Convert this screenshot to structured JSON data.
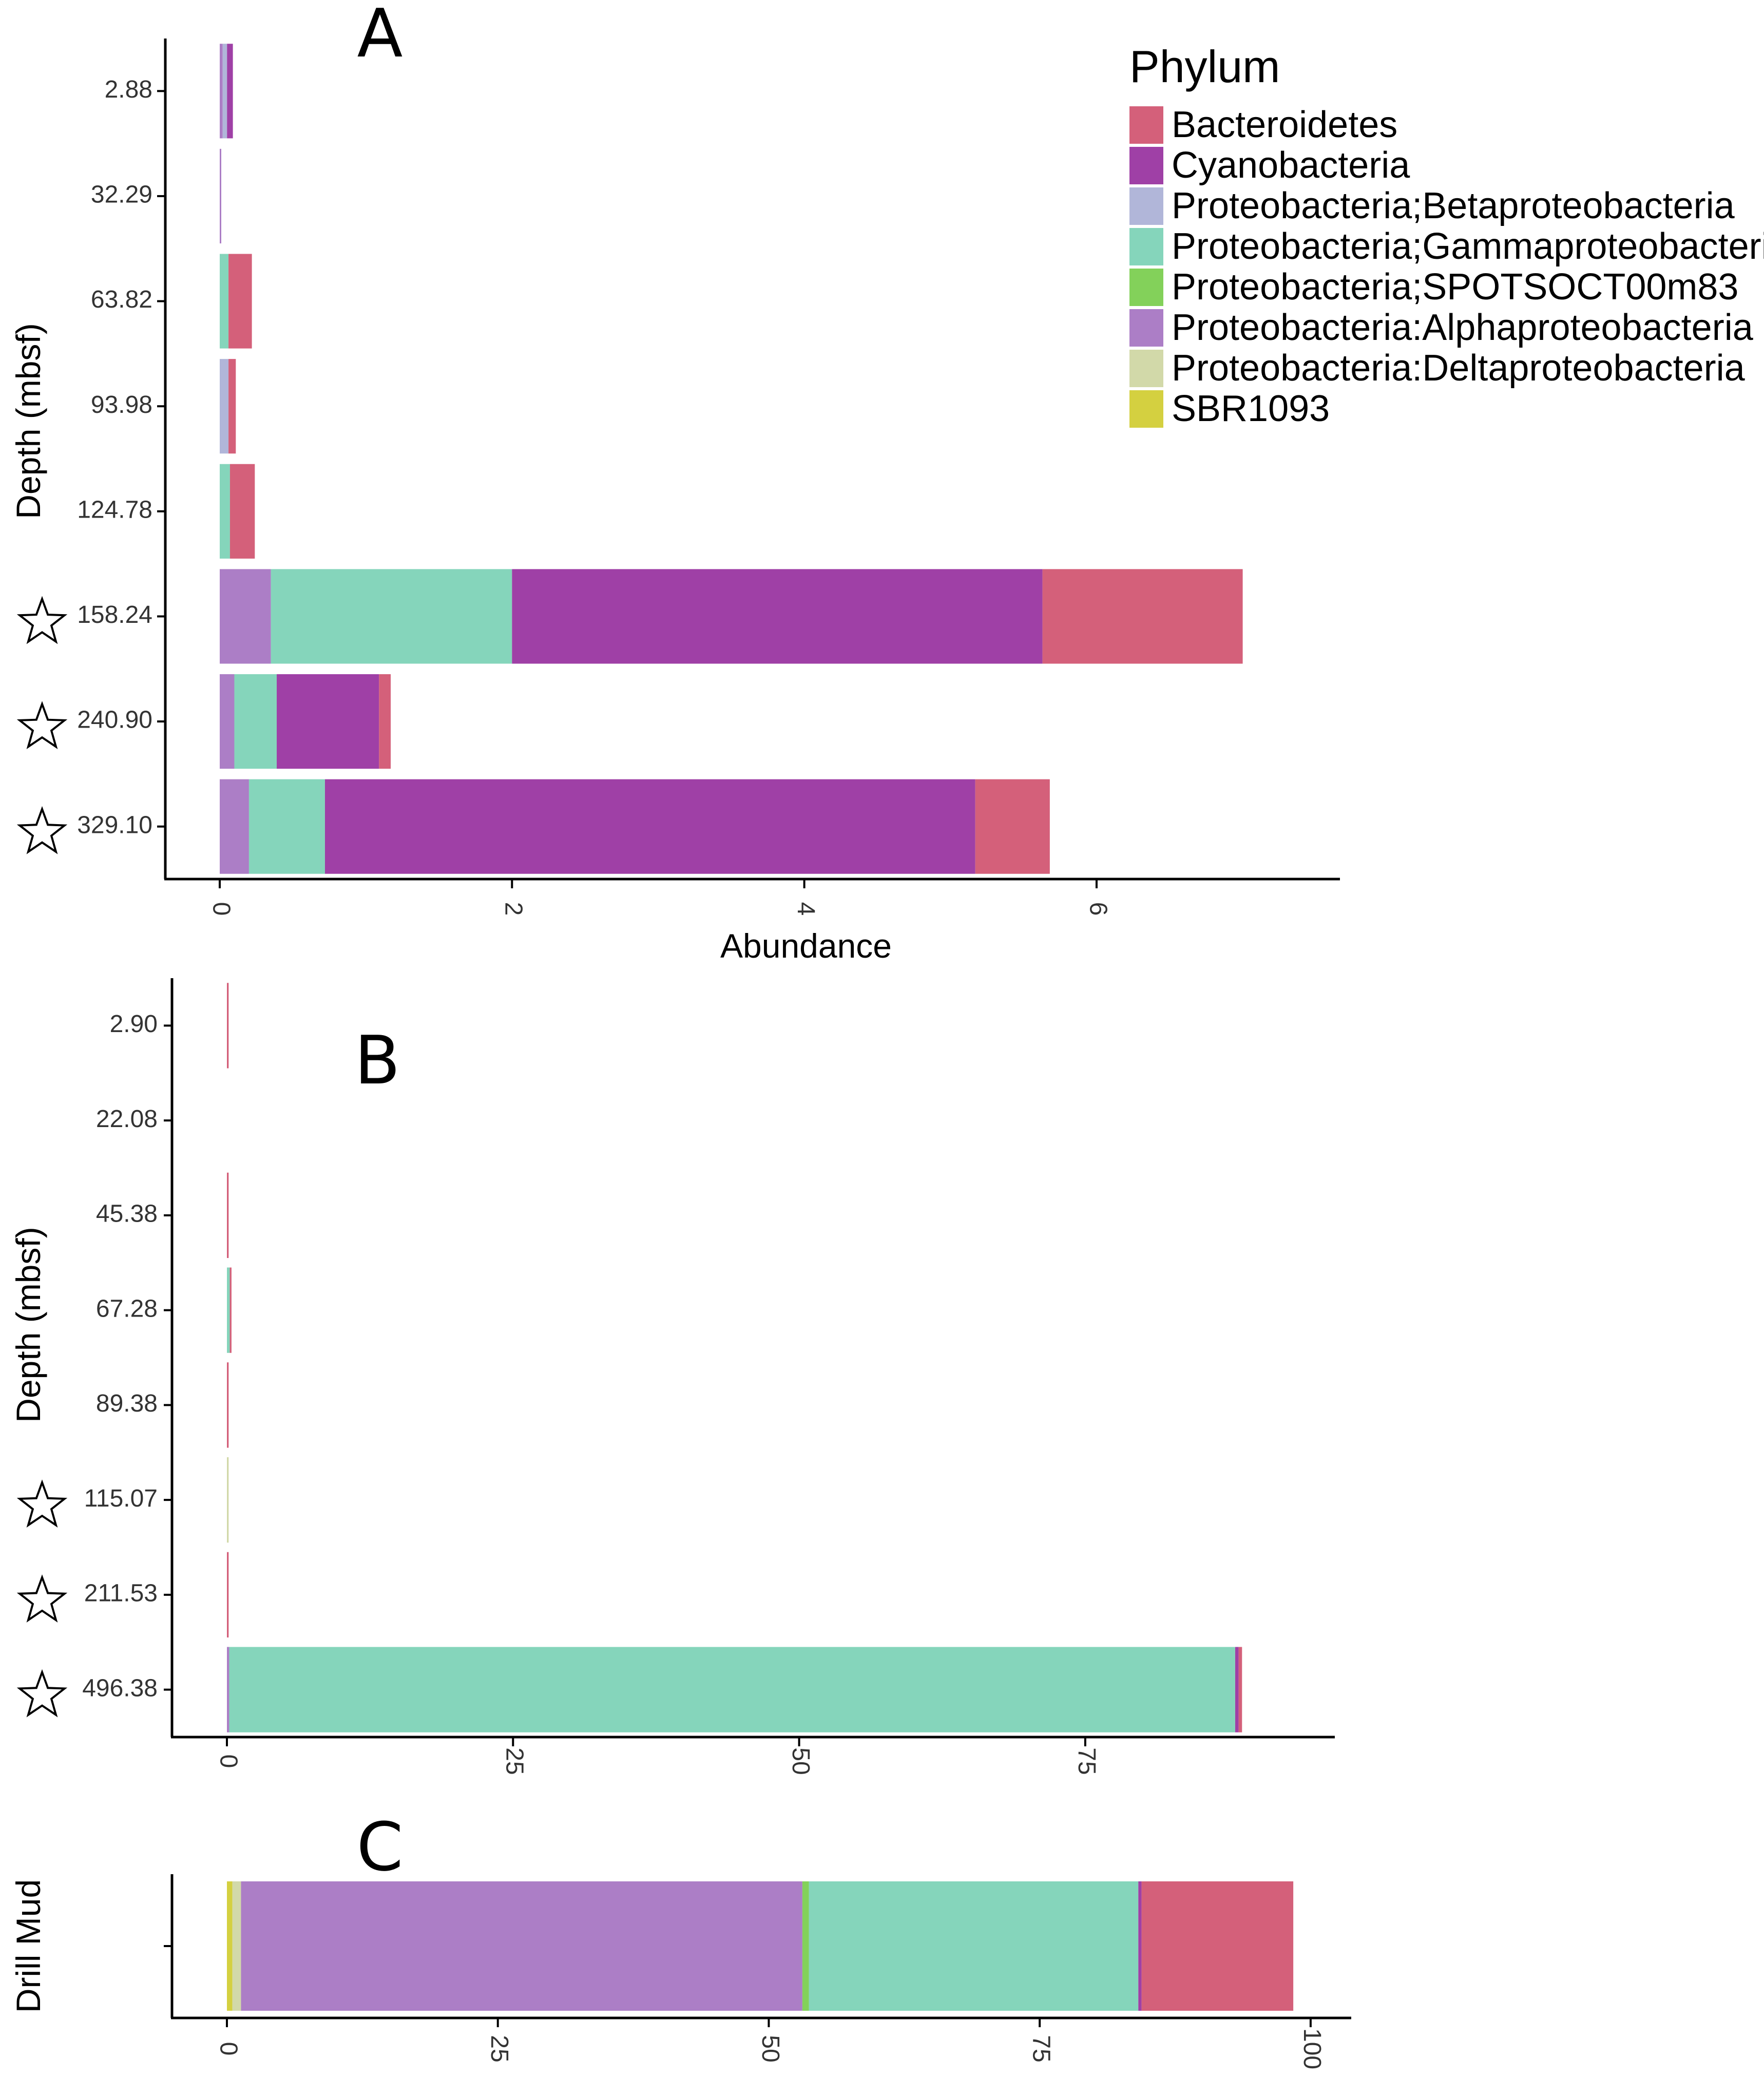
{
  "legend": {
    "title": "Phylum",
    "position": "top-right",
    "items": [
      {
        "label": "Bacteroidetes",
        "color": "#D4607A"
      },
      {
        "label": "Cyanobacteria",
        "color": "#9F40A6"
      },
      {
        "label": "Proteobacteria;Betaproteobacteria",
        "color": "#B1B6D9"
      },
      {
        "label": "Proteobacteria;Gammaproteobacteria",
        "color": "#85D5BB"
      },
      {
        "label": "Proteobacteria;SPOTSOCT00m83",
        "color": "#83D15A"
      },
      {
        "label": "Proteobacteria:Alphaproteobacteria",
        "color": "#AC7EC6"
      },
      {
        "label": "Proteobacteria:Deltaproteobacteria",
        "color": "#D2D9A9"
      },
      {
        "label": "SBR1093",
        "color": "#D4D040"
      }
    ]
  },
  "chart_data": [
    {
      "panel": "A",
      "type": "bar",
      "orientation": "horizontal",
      "stacked": true,
      "ylabel": "Depth (mbsf)",
      "xlabel": "Abundance",
      "xlim": [
        0,
        7.3
      ],
      "xticks": [
        "0",
        "2",
        "4",
        "6"
      ],
      "xtick_values": [
        0,
        2,
        4,
        6
      ],
      "categories": [
        "2.88",
        "32.29",
        "63.82",
        "93.98",
        "124.78",
        "158.24",
        "240.90",
        "329.10"
      ],
      "starred": [
        false,
        false,
        false,
        false,
        false,
        true,
        true,
        true
      ],
      "series": [
        {
          "name": "Proteobacteria:Alphaproteobacteria",
          "values": [
            0.02,
            0.01,
            0,
            0,
            0,
            0.35,
            0.1,
            0.2
          ]
        },
        {
          "name": "Proteobacteria;Betaproteobacteria",
          "values": [
            0.03,
            0,
            0,
            0.06,
            0,
            0,
            0,
            0
          ]
        },
        {
          "name": "Proteobacteria;Gammaproteobacteria",
          "values": [
            0,
            0,
            0.06,
            0,
            0.07,
            1.65,
            0.29,
            0.52
          ]
        },
        {
          "name": "Cyanobacteria",
          "values": [
            0.04,
            0,
            0,
            0,
            0,
            3.63,
            0.7,
            4.45
          ]
        },
        {
          "name": "Bacteroidetes",
          "values": [
            0,
            0,
            0.16,
            0.05,
            0.17,
            1.37,
            0.08,
            0.51
          ]
        }
      ]
    },
    {
      "panel": "B",
      "type": "bar",
      "orientation": "horizontal",
      "stacked": true,
      "ylabel": "Depth (mbsf)",
      "xlabel": "",
      "xlim": [
        0,
        92.5
      ],
      "xticks": [
        "0",
        "25",
        "50",
        "75"
      ],
      "xtick_values": [
        0,
        25,
        50,
        75
      ],
      "categories": [
        "2.90",
        "22.08",
        "45.38",
        "67.28",
        "89.38",
        "115.07",
        "211.53",
        "496.38"
      ],
      "starred": [
        false,
        false,
        false,
        false,
        false,
        true,
        true,
        true
      ],
      "series": [
        {
          "name": "Proteobacteria:Deltaproteobacteria",
          "values": [
            0,
            0,
            0,
            0,
            0,
            0.15,
            0,
            0
          ]
        },
        {
          "name": "Proteobacteria:Alphaproteobacteria",
          "values": [
            0,
            0,
            0,
            0,
            0,
            0,
            0,
            0.2
          ]
        },
        {
          "name": "Proteobacteria;Gammaproteobacteria",
          "values": [
            0,
            0,
            0,
            0.25,
            0,
            0,
            0,
            87.9
          ]
        },
        {
          "name": "Cyanobacteria",
          "values": [
            0,
            0,
            0,
            0,
            0,
            0,
            0,
            0.3
          ]
        },
        {
          "name": "Bacteroidetes",
          "values": [
            0.15,
            0,
            0.15,
            0.15,
            0.15,
            0,
            0.15,
            0.3
          ]
        }
      ]
    },
    {
      "panel": "C",
      "type": "bar",
      "orientation": "horizontal",
      "stacked": true,
      "ylabel": "Drill Mud",
      "xlabel": "",
      "xlim": [
        0,
        101
      ],
      "xticks": [
        "0",
        "25",
        "50",
        "75",
        "100"
      ],
      "xtick_values": [
        0,
        25,
        50,
        75,
        100
      ],
      "categories": [
        ""
      ],
      "starred": [
        false
      ],
      "series": [
        {
          "name": "SBR1093",
          "values": [
            0.5
          ]
        },
        {
          "name": "Proteobacteria:Deltaproteobacteria",
          "values": [
            0.8
          ]
        },
        {
          "name": "Proteobacteria:Alphaproteobacteria",
          "values": [
            51.8
          ]
        },
        {
          "name": "Proteobacteria;SPOTSOCT00m83",
          "values": [
            0.6
          ]
        },
        {
          "name": "Proteobacteria;Gammaproteobacteria",
          "values": [
            30.4
          ]
        },
        {
          "name": "Cyanobacteria",
          "values": [
            0.3
          ]
        },
        {
          "name": "Bacteroidetes",
          "values": [
            14.0
          ]
        }
      ]
    }
  ]
}
